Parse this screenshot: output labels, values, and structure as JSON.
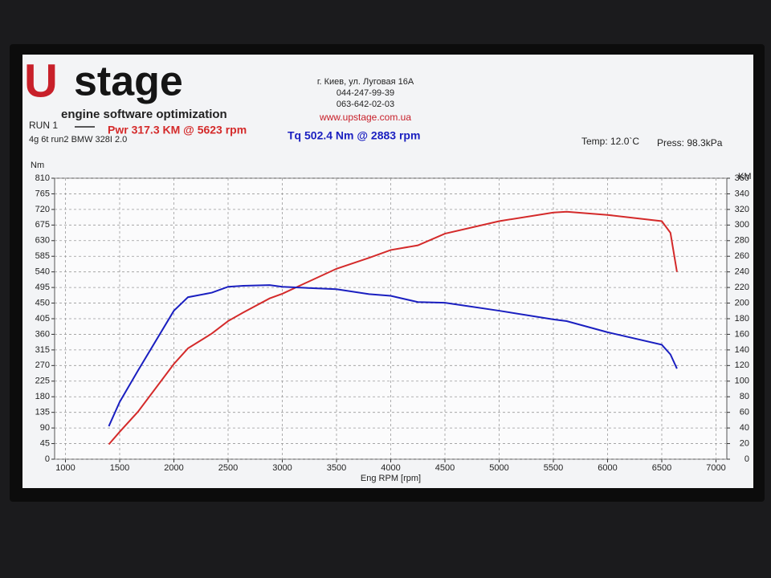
{
  "header": {
    "logo_mark": "U",
    "logo_text": "stage",
    "tagline": "engine software optimization",
    "address": [
      "г. Киев, ул. Луговая 16А",
      "044-247-99-39",
      "063-642-02-03"
    ],
    "website": "www.upstage.com.ua",
    "run": "RUN 1",
    "description": "4g 6t run2 BMW 328I 2.0",
    "temp": "Temp: 12.0`C",
    "press": "Press: 98.3kPa"
  },
  "chart_data": {
    "type": "line",
    "x_label": "Eng RPM [rpm]",
    "y_label": "Nm",
    "y2_label": "KM",
    "x": [
      1400,
      1500,
      1670,
      2000,
      2130,
      2350,
      2500,
      2640,
      2883,
      3000,
      3500,
      3800,
      4000,
      4250,
      4500,
      5000,
      5500,
      5623,
      6000,
      6500,
      6580,
      6640
    ],
    "series": [
      {
        "name": "Pwr 317.3 KM @ 5623 rpm",
        "color": "#d42a2a",
        "axis": "y2",
        "values": [
          19,
          35,
          61,
          122,
          142,
          161,
          177,
          188,
          206,
          212,
          244,
          258,
          268,
          274,
          289,
          305,
          316,
          317,
          313,
          305,
          290,
          240
        ]
      },
      {
        "name": "Tq 502.4 Nm @ 2883 rpm",
        "color": "#1a1fc0",
        "values": [
          95,
          165,
          256,
          428,
          467,
          480,
          497,
          500,
          502,
          497,
          490,
          476,
          471,
          453,
          451,
          428,
          403,
          398,
          366,
          330,
          302,
          261
        ]
      }
    ],
    "xlim": [
      900,
      7100
    ],
    "xticks": [
      1000,
      1500,
      2000,
      2500,
      3000,
      3500,
      4000,
      4500,
      5000,
      5500,
      6000,
      6500,
      7000
    ],
    "ylim": [
      0,
      810
    ],
    "yticks": [
      0,
      45,
      90,
      135,
      180,
      225,
      270,
      315,
      360,
      405,
      450,
      495,
      540,
      585,
      630,
      675,
      720,
      765,
      810
    ],
    "y2lim": [
      0,
      360
    ],
    "y2ticks": [
      0,
      20,
      40,
      60,
      80,
      100,
      120,
      140,
      160,
      180,
      200,
      220,
      240,
      260,
      280,
      300,
      320,
      340,
      360
    ],
    "grid": true
  }
}
